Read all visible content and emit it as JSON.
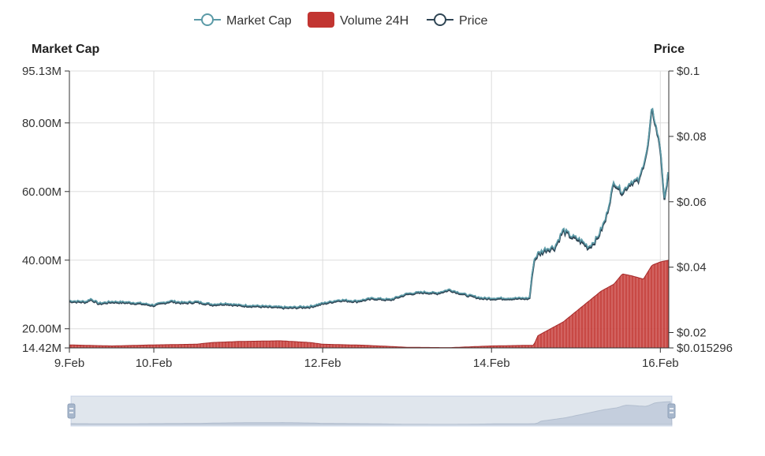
{
  "legend": [
    {
      "name": "Market Cap",
      "kind": "line-circle",
      "color": "#5b9aa7"
    },
    {
      "name": "Volume 24H",
      "kind": "rect",
      "color": "#c23531"
    },
    {
      "name": "Price",
      "kind": "line-circle",
      "color": "#2f4554"
    }
  ],
  "chart_data": {
    "type": "line",
    "left_axis_title": "Market Cap",
    "right_axis_title": "Price",
    "left_axis": {
      "min": 14.42,
      "max": 95.13,
      "ticks": [
        14.42,
        20,
        40,
        60,
        80,
        95.13
      ],
      "tick_labels": [
        "14.42M",
        "20.00M",
        "40.00M",
        "60.00M",
        "80.00M",
        "95.13M"
      ]
    },
    "right_axis": {
      "min": 0.015296,
      "max": 0.1,
      "ticks": [
        0.015296,
        0.02,
        0.04,
        0.06,
        0.08,
        0.1
      ],
      "tick_labels": [
        "$0.015296",
        "$0.02",
        "$0.04",
        "$0.06",
        "$0.08",
        "$0.1"
      ]
    },
    "x_axis": {
      "unit": "days since 9.Feb 00:00",
      "min": 0,
      "max": 7.1,
      "ticks": [
        0,
        1,
        3,
        5,
        7
      ],
      "tick_labels": [
        "9.Feb",
        "10.Feb",
        "12.Feb",
        "14.Feb",
        "16.Feb"
      ]
    },
    "grid": true,
    "legend_position": "top-center",
    "series": [
      {
        "name": "Market Cap",
        "axis": "left",
        "x": [
          0,
          0.2,
          0.25,
          0.35,
          0.5,
          0.7,
          0.85,
          1.0,
          1.2,
          1.35,
          1.5,
          1.7,
          1.85,
          2.0,
          2.2,
          2.4,
          2.6,
          2.85,
          3.0,
          3.2,
          3.4,
          3.6,
          3.8,
          4.0,
          4.2,
          4.35,
          4.5,
          4.7,
          4.9,
          5.1,
          5.3,
          5.45,
          5.5,
          5.55,
          5.65,
          5.75,
          5.85,
          5.95,
          6.05,
          6.15,
          6.25,
          6.35,
          6.45,
          6.55,
          6.65,
          6.75,
          6.85,
          6.9,
          6.95,
          7.0,
          7.05,
          7.1
        ],
        "values": [
          28.2,
          28.0,
          28.8,
          27.5,
          28.0,
          27.8,
          27.5,
          27.0,
          28.2,
          27.7,
          28.0,
          27.2,
          27.5,
          27.0,
          26.8,
          26.5,
          26.3,
          26.6,
          27.5,
          28.5,
          28.2,
          29.0,
          28.6,
          30.3,
          30.8,
          30.5,
          31.5,
          30.0,
          29.0,
          29.0,
          29.0,
          29.0,
          40.0,
          42.0,
          43.5,
          44.0,
          49.0,
          47.0,
          46.0,
          44.0,
          46.5,
          52.0,
          63.0,
          60.0,
          63.0,
          63.5,
          73.0,
          84.5,
          79.0,
          73.0,
          57.0,
          68.0
        ]
      },
      {
        "name": "Price",
        "axis": "left",
        "x": [
          0,
          0.2,
          0.25,
          0.35,
          0.5,
          0.7,
          0.85,
          1.0,
          1.2,
          1.35,
          1.5,
          1.7,
          1.85,
          2.0,
          2.2,
          2.4,
          2.6,
          2.85,
          3.0,
          3.2,
          3.4,
          3.6,
          3.8,
          4.0,
          4.2,
          4.35,
          4.5,
          4.7,
          4.9,
          5.1,
          5.3,
          5.45,
          5.5,
          5.55,
          5.65,
          5.75,
          5.85,
          5.95,
          6.05,
          6.15,
          6.25,
          6.35,
          6.45,
          6.55,
          6.65,
          6.75,
          6.85,
          6.9,
          6.95,
          7.0,
          7.05,
          7.1
        ],
        "values": [
          27.9,
          27.7,
          28.5,
          27.2,
          27.7,
          27.5,
          27.2,
          26.7,
          27.9,
          27.4,
          27.7,
          26.9,
          27.2,
          26.7,
          26.5,
          26.2,
          26.0,
          26.3,
          27.2,
          28.2,
          27.9,
          28.7,
          28.3,
          30.0,
          30.5,
          30.2,
          31.2,
          29.7,
          28.7,
          28.7,
          28.7,
          28.7,
          39.5,
          41.5,
          43.0,
          43.5,
          48.5,
          46.5,
          45.5,
          43.5,
          46.0,
          51.5,
          62.5,
          59.5,
          62.5,
          63.0,
          72.5,
          84.0,
          78.5,
          72.5,
          56.5,
          67.5
        ]
      },
      {
        "name": "Volume 24H",
        "axis": "left",
        "type": "area",
        "x": [
          0,
          0.5,
          1.0,
          1.5,
          1.7,
          2.0,
          2.5,
          2.85,
          3.0,
          3.5,
          4.0,
          4.5,
          5.0,
          5.5,
          5.55,
          5.7,
          5.85,
          6.0,
          6.15,
          6.3,
          6.45,
          6.55,
          6.65,
          6.8,
          6.9,
          7.0,
          7.1
        ],
        "values": [
          15.3,
          15.0,
          15.3,
          15.5,
          16.0,
          16.3,
          16.5,
          16.0,
          15.5,
          15.2,
          14.6,
          14.5,
          15.0,
          15.2,
          18.0,
          20.0,
          22.0,
          25.0,
          28.0,
          31.0,
          33.0,
          36.0,
          35.5,
          34.5,
          38.5,
          39.5,
          40.0
        ]
      }
    ]
  }
}
